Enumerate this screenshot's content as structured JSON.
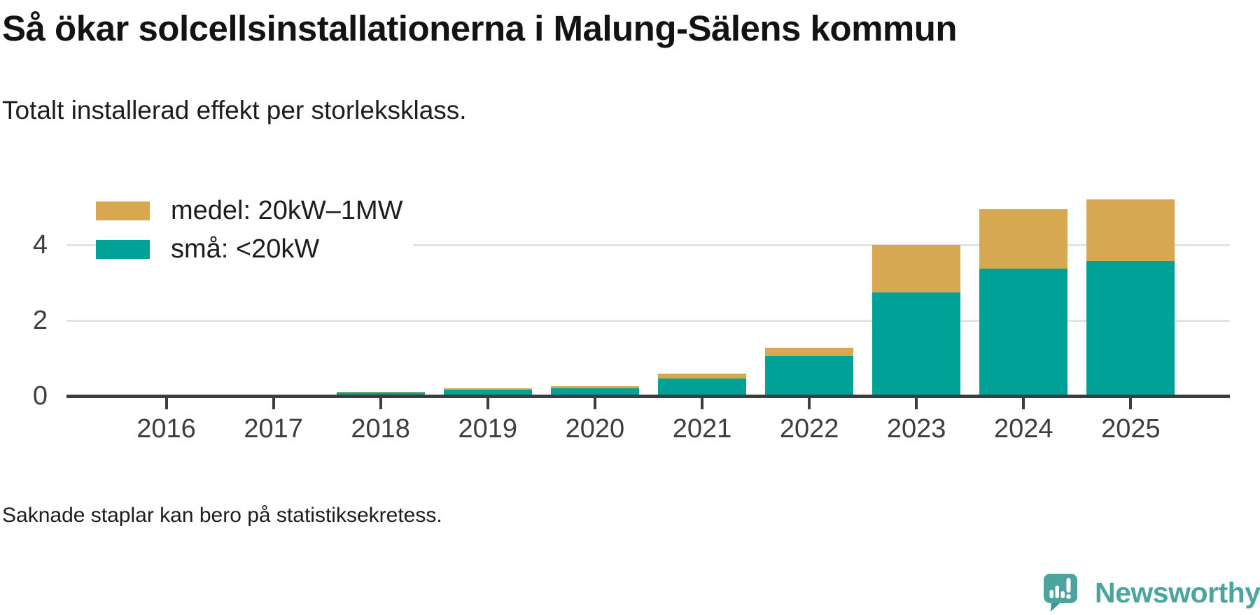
{
  "header": {
    "title": "Så ökar solcellsinstallationerna i Malung-Sälens kommun",
    "subtitle": "Totalt installerad effekt per storleksklass."
  },
  "chart_data": {
    "type": "bar",
    "stacked": true,
    "categories": [
      "2016",
      "2017",
      "2018",
      "2019",
      "2020",
      "2021",
      "2022",
      "2023",
      "2024",
      "2025"
    ],
    "series": [
      {
        "name": "medel: 20kW–1MW",
        "color": "#d7a852",
        "values": [
          null,
          null,
          0.03,
          0.03,
          0.05,
          0.13,
          0.22,
          1.26,
          1.57,
          1.63
        ]
      },
      {
        "name": "små: <20kW",
        "color": "#00a196",
        "values": [
          null,
          null,
          0.09,
          0.17,
          0.21,
          0.47,
          1.05,
          2.74,
          3.37,
          3.57
        ]
      }
    ],
    "yticks": [
      0,
      2,
      4
    ],
    "ylim": [
      0,
      5.6
    ],
    "grid": "horizontal",
    "legend_position": "top-left",
    "note": "Bars absent for 2016 and 2017"
  },
  "footer": {
    "note": "Saknade staplar kan bero på statistiksekretess."
  },
  "branding": {
    "logo_text": "Newsworthy",
    "logo_color": "#4ba59e",
    "logo_icon": "speech-bubble-bar-chart-exclamation"
  },
  "colors": {
    "axis": "#3d3d3d",
    "gridline": "#e3e3e3",
    "background": "#ffffff"
  }
}
